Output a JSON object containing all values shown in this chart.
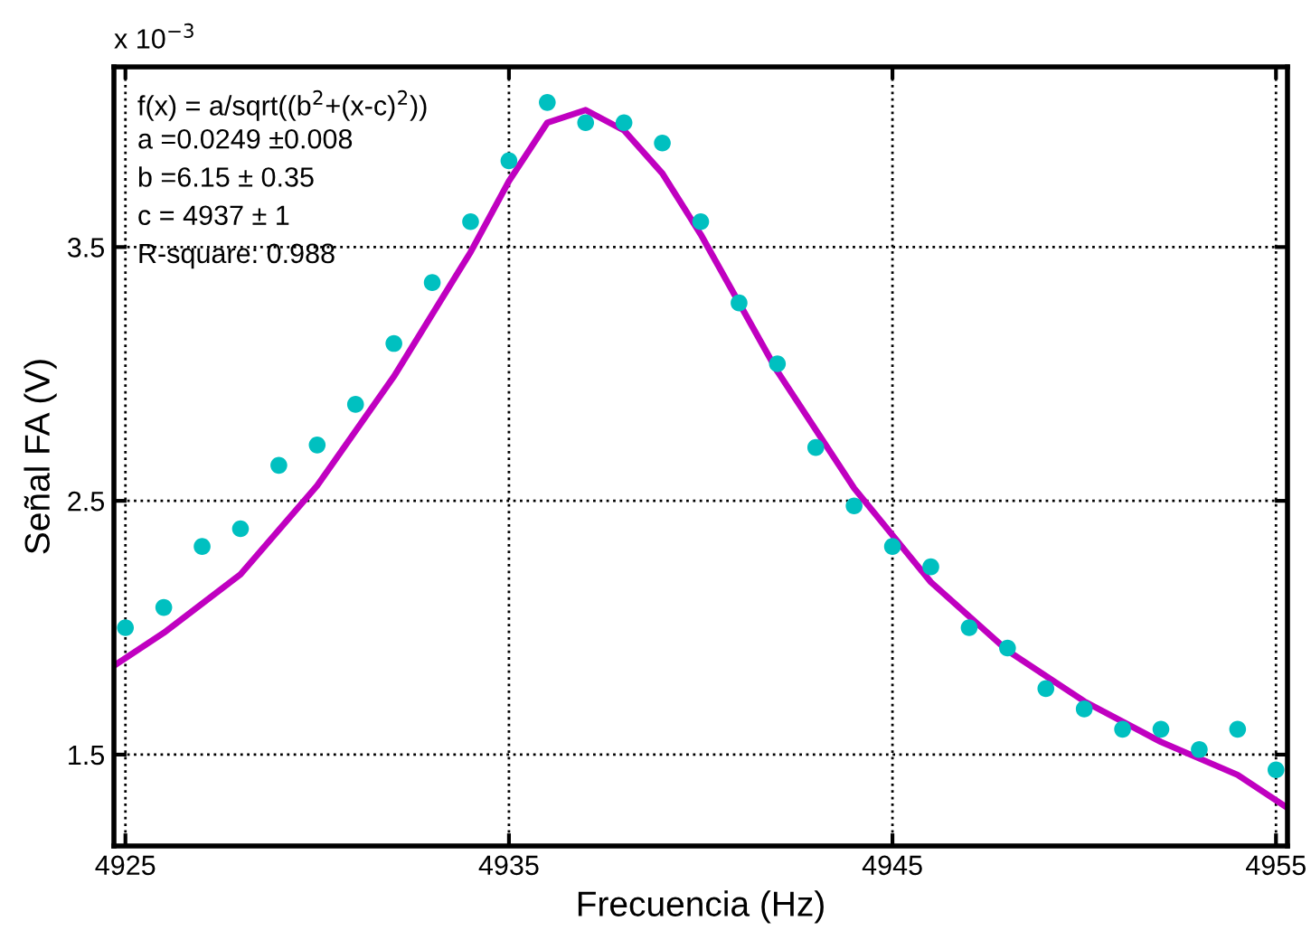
{
  "chart_data": {
    "type": "scatter",
    "xlabel": "Frecuencia (Hz)",
    "ylabel": "Señal FA (V)",
    "xlim": [
      4924.7,
      4955.3
    ],
    "ylim": [
      1.14,
      4.21
    ],
    "xticks": [
      4925,
      4935,
      4945,
      4955
    ],
    "yticks": [
      1.5,
      2.5,
      3.5
    ],
    "grid": true,
    "marker": "circle",
    "annotations": [
      "x 10$^{−3}$",
      "f(x) = a/sqrt((b$^{2}$+(x-c)$^{2}$))",
      "a =0.0249 ±0.008",
      "b =6.15 ± 0.35",
      "c = 4937 ± 1",
      "R-square: 0.988"
    ],
    "series": [
      {
        "color": "#00c0c0",
        "x": [
          4925,
          4926,
          4927,
          4928,
          4929,
          4930,
          4931,
          4932,
          4933,
          4934,
          4935,
          4936,
          4937,
          4938,
          4939,
          4940,
          4941,
          4942,
          4943,
          4944,
          4945,
          4946,
          4947,
          4948,
          4949,
          4950,
          4951,
          4952,
          4953,
          4954,
          4955
        ],
        "values": [
          2.0,
          2.08,
          2.32,
          2.39,
          2.64,
          2.72,
          2.88,
          3.12,
          3.36,
          3.6,
          3.84,
          4.07,
          3.99,
          3.99,
          3.91,
          3.6,
          3.28,
          3.04,
          2.71,
          2.48,
          2.32,
          2.24,
          2.0,
          1.92,
          1.76,
          1.68,
          1.6,
          1.6,
          1.52,
          1.6,
          1.44
        ]
      },
      {
        "type": "line",
        "color": "#c000c0",
        "marker": "none",
        "line_style": "solid",
        "x": [
          4924.7,
          4926,
          4928,
          4930,
          4932,
          4934,
          4935,
          4936,
          4937,
          4938,
          4939,
          4940,
          4942,
          4944,
          4946,
          4948,
          4950,
          4952,
          4954,
          4955.3
        ],
        "values": [
          1.85,
          1.98,
          2.21,
          2.56,
          2.99,
          3.48,
          3.76,
          3.99,
          4.04,
          3.96,
          3.79,
          3.55,
          3.01,
          2.55,
          2.18,
          1.91,
          1.71,
          1.55,
          1.42,
          1.29
        ]
      }
    ]
  }
}
